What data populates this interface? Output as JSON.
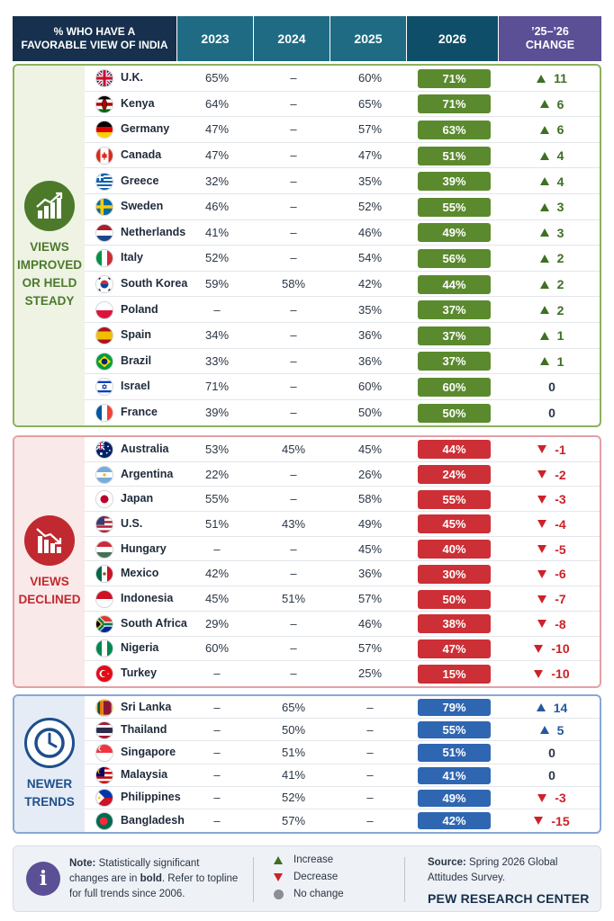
{
  "header": {
    "title_line1": "% WHO HAVE A",
    "title_line2": "FAVORABLE VIEW OF INDIA",
    "col_2023": "2023",
    "col_2024": "2024",
    "col_2025": "2025",
    "col_2026": "2026",
    "change_line1": "’25–’26",
    "change_line2": "CHANGE"
  },
  "colors": {
    "improved_accent": "#4c7a2a",
    "improved_pill": "#5b8a2e",
    "improved_bg": "#eef3e4",
    "declined_accent": "#c0292f",
    "declined_pill": "#cc2f35",
    "declined_bg": "#f9e9e9",
    "newer_accent": "#1e4f8c",
    "newer_pill": "#2f66b2",
    "newer_bg": "#e6ecf6",
    "up_arrow": "#3f6f23",
    "down_arrow": "#cc2229",
    "newer_up_arrow": "#2558a0",
    "header_navy": "#16304d",
    "header_teal": "#1f6b84",
    "header_purple": "#5b4f96"
  },
  "chart_data": {
    "type": "table",
    "columns": [
      "2023",
      "2024",
      "2025",
      "2026",
      "’25–’26 CHANGE"
    ],
    "groups": [
      {
        "id": "improved",
        "title_lines": [
          "VIEWS",
          "IMPROVED",
          "OR HELD",
          "STEADY"
        ],
        "icon": "chart-up-icon",
        "rows": [
          {
            "country": "U.K.",
            "flag": "uk",
            "y2023": "65%",
            "y2024": "–",
            "y2025": "60%",
            "y2026": "71%",
            "change": "11",
            "dir": "up"
          },
          {
            "country": "Kenya",
            "flag": "kenya",
            "y2023": "64%",
            "y2024": "–",
            "y2025": "65%",
            "y2026": "71%",
            "change": "6",
            "dir": "up"
          },
          {
            "country": "Germany",
            "flag": "germany",
            "y2023": "47%",
            "y2024": "–",
            "y2025": "57%",
            "y2026": "63%",
            "change": "6",
            "dir": "up"
          },
          {
            "country": "Canada",
            "flag": "canada",
            "y2023": "47%",
            "y2024": "–",
            "y2025": "47%",
            "y2026": "51%",
            "change": "4",
            "dir": "up"
          },
          {
            "country": "Greece",
            "flag": "greece",
            "y2023": "32%",
            "y2024": "–",
            "y2025": "35%",
            "y2026": "39%",
            "change": "4",
            "dir": "up"
          },
          {
            "country": "Sweden",
            "flag": "sweden",
            "y2023": "46%",
            "y2024": "–",
            "y2025": "52%",
            "y2026": "55%",
            "change": "3",
            "dir": "up"
          },
          {
            "country": "Netherlands",
            "flag": "netherlands",
            "y2023": "41%",
            "y2024": "–",
            "y2025": "46%",
            "y2026": "49%",
            "change": "3",
            "dir": "up"
          },
          {
            "country": "Italy",
            "flag": "italy",
            "y2023": "52%",
            "y2024": "–",
            "y2025": "54%",
            "y2026": "56%",
            "change": "2",
            "dir": "up"
          },
          {
            "country": "South Korea",
            "flag": "southkorea",
            "y2023": "59%",
            "y2024": "58%",
            "y2025": "42%",
            "y2026": "44%",
            "change": "2",
            "dir": "up"
          },
          {
            "country": "Poland",
            "flag": "poland",
            "y2023": "–",
            "y2024": "–",
            "y2025": "35%",
            "y2026": "37%",
            "change": "2",
            "dir": "up"
          },
          {
            "country": "Spain",
            "flag": "spain",
            "y2023": "34%",
            "y2024": "–",
            "y2025": "36%",
            "y2026": "37%",
            "change": "1",
            "dir": "up"
          },
          {
            "country": "Brazil",
            "flag": "brazil",
            "y2023": "33%",
            "y2024": "–",
            "y2025": "36%",
            "y2026": "37%",
            "change": "1",
            "dir": "up"
          },
          {
            "country": "Israel",
            "flag": "israel",
            "y2023": "71%",
            "y2024": "–",
            "y2025": "60%",
            "y2026": "60%",
            "change": "0",
            "dir": "none"
          },
          {
            "country": "France",
            "flag": "france",
            "y2023": "39%",
            "y2024": "–",
            "y2025": "50%",
            "y2026": "50%",
            "change": "0",
            "dir": "none"
          }
        ]
      },
      {
        "id": "declined",
        "title_lines": [
          "VIEWS",
          "DECLINED"
        ],
        "icon": "chart-down-icon",
        "rows": [
          {
            "country": "Australia",
            "flag": "australia",
            "y2023": "53%",
            "y2024": "45%",
            "y2025": "45%",
            "y2026": "44%",
            "change": "-1",
            "dir": "down"
          },
          {
            "country": "Argentina",
            "flag": "argentina",
            "y2023": "22%",
            "y2024": "–",
            "y2025": "26%",
            "y2026": "24%",
            "change": "-2",
            "dir": "down"
          },
          {
            "country": "Japan",
            "flag": "japan",
            "y2023": "55%",
            "y2024": "–",
            "y2025": "58%",
            "y2026": "55%",
            "change": "-3",
            "dir": "down"
          },
          {
            "country": "U.S.",
            "flag": "us",
            "y2023": "51%",
            "y2024": "43%",
            "y2025": "49%",
            "y2026": "45%",
            "change": "-4",
            "dir": "down"
          },
          {
            "country": "Hungary",
            "flag": "hungary",
            "y2023": "–",
            "y2024": "–",
            "y2025": "45%",
            "y2026": "40%",
            "change": "-5",
            "dir": "down"
          },
          {
            "country": "Mexico",
            "flag": "mexico",
            "y2023": "42%",
            "y2024": "–",
            "y2025": "36%",
            "y2026": "30%",
            "change": "-6",
            "dir": "down"
          },
          {
            "country": "Indonesia",
            "flag": "indonesia",
            "y2023": "45%",
            "y2024": "51%",
            "y2025": "57%",
            "y2026": "50%",
            "change": "-7",
            "dir": "down"
          },
          {
            "country": "South Africa",
            "flag": "southafrica",
            "y2023": "29%",
            "y2024": "–",
            "y2025": "46%",
            "y2026": "38%",
            "change": "-8",
            "dir": "down"
          },
          {
            "country": "Nigeria",
            "flag": "nigeria",
            "y2023": "60%",
            "y2024": "–",
            "y2025": "57%",
            "y2026": "47%",
            "change": "-10",
            "dir": "down"
          },
          {
            "country": "Turkey",
            "flag": "turkey",
            "y2023": "–",
            "y2024": "–",
            "y2025": "25%",
            "y2026": "15%",
            "change": "-10",
            "dir": "down"
          }
        ]
      },
      {
        "id": "newer",
        "title_lines": [
          "NEWER",
          "TRENDS"
        ],
        "icon": "clock-icon",
        "rows": [
          {
            "country": "Sri Lanka",
            "flag": "srilanka",
            "y2023": "–",
            "y2024": "65%",
            "y2025": "–",
            "y2026": "79%",
            "change": "14",
            "dir": "up"
          },
          {
            "country": "Thailand",
            "flag": "thailand",
            "y2023": "–",
            "y2024": "50%",
            "y2025": "–",
            "y2026": "55%",
            "change": "5",
            "dir": "up"
          },
          {
            "country": "Singapore",
            "flag": "singapore",
            "y2023": "–",
            "y2024": "51%",
            "y2025": "–",
            "y2026": "51%",
            "change": "0",
            "dir": "none"
          },
          {
            "country": "Malaysia",
            "flag": "malaysia",
            "y2023": "–",
            "y2024": "41%",
            "y2025": "–",
            "y2026": "41%",
            "change": "0",
            "dir": "none"
          },
          {
            "country": "Philippines",
            "flag": "philippines",
            "y2023": "–",
            "y2024": "52%",
            "y2025": "–",
            "y2026": "49%",
            "change": "-3",
            "dir": "down"
          },
          {
            "country": "Bangladesh",
            "flag": "bangladesh",
            "y2023": "–",
            "y2024": "57%",
            "y2025": "–",
            "y2026": "42%",
            "change": "-15",
            "dir": "down"
          }
        ]
      }
    ]
  },
  "legend": {
    "note_label": "Note:",
    "note_pre": " Statistically significant changes are in ",
    "note_bold": "bold",
    "note_post": ". Refer to topline for full trends since 2006.",
    "increase": "Increase",
    "decrease": "Decrease",
    "no_change": "No change",
    "source_label": "Source:",
    "source_text": " Spring 2026 Global Attitudes Survey.",
    "org": "PEW RESEARCH CENTER"
  }
}
